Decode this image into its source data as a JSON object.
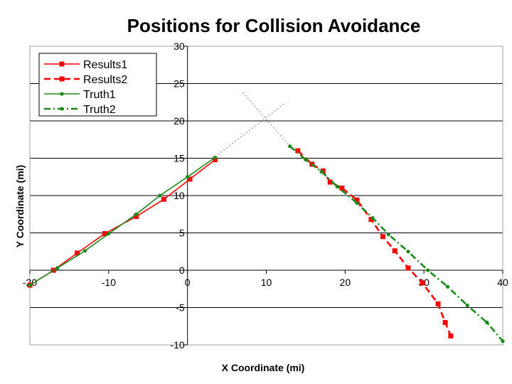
{
  "chart_data": {
    "type": "line",
    "title": "Positions for Collision Avoidance",
    "xlabel": "X Coordinate (mi)",
    "ylabel": "Y Coordinate (mi)",
    "xlim": [
      -20,
      40
    ],
    "ylim": [
      -10,
      30
    ],
    "xticks": [
      -20,
      -10,
      0,
      10,
      20,
      30,
      40
    ],
    "yticks": [
      -10,
      -5,
      0,
      5,
      10,
      15,
      20,
      25,
      30
    ],
    "grid": "horizontal",
    "legend_position": "top-left",
    "series": [
      {
        "name": "Results1",
        "color": "#ff0000",
        "style": "solid",
        "marker": "square",
        "points": [
          [
            -20,
            -2
          ],
          [
            -17,
            0
          ],
          [
            -14,
            2.3
          ],
          [
            -10.5,
            4.9
          ],
          [
            -6.5,
            7.2
          ],
          [
            -3,
            9.5
          ],
          [
            0.3,
            12.2
          ],
          [
            3.5,
            14.8
          ]
        ]
      },
      {
        "name": "Results2",
        "color": "#ff0000",
        "style": "dashed",
        "marker": "square",
        "points": [
          [
            14,
            16
          ],
          [
            15.8,
            14.2
          ],
          [
            17.2,
            13.3
          ],
          [
            18.1,
            11.8
          ],
          [
            19.6,
            11
          ],
          [
            21.5,
            9.4
          ],
          [
            23.3,
            6.8
          ],
          [
            24.8,
            4.5
          ],
          [
            26.3,
            2.6
          ],
          [
            28,
            0.3
          ],
          [
            29.8,
            -1.7
          ],
          [
            31.8,
            -4.5
          ],
          [
            32.7,
            -7
          ],
          [
            33.4,
            -8.8
          ]
        ]
      },
      {
        "name": "Truth1",
        "color": "#1a8a1a",
        "style": "solid",
        "marker": "dot",
        "points": [
          [
            -20,
            -2
          ],
          [
            -16.5,
            0.3
          ],
          [
            -13,
            2.6
          ],
          [
            -10,
            4.9
          ],
          [
            -6.5,
            7.5
          ],
          [
            -3.5,
            10
          ],
          [
            0,
            12.5
          ],
          [
            3.5,
            15.1
          ]
        ]
      },
      {
        "name": "Truth2",
        "color": "#1a8a1a",
        "style": "dash-dot",
        "marker": "dot",
        "points": [
          [
            13,
            16.6
          ],
          [
            15,
            14.8
          ],
          [
            17,
            13.2
          ],
          [
            19,
            11.2
          ],
          [
            21.5,
            9
          ],
          [
            23.5,
            7
          ],
          [
            25.5,
            4.8
          ],
          [
            28,
            2.5
          ],
          [
            30.5,
            0
          ],
          [
            33,
            -2.2
          ],
          [
            35.5,
            -4.7
          ],
          [
            38,
            -7
          ],
          [
            40,
            -9.5
          ]
        ]
      },
      {
        "name": "",
        "color": "#808080",
        "style": "dotted",
        "marker": "none",
        "points": [
          [
            3.5,
            15.2
          ],
          [
            12.5,
            22.5
          ]
        ]
      },
      {
        "name": "",
        "color": "#808080",
        "style": "dotted",
        "marker": "none",
        "points": [
          [
            7,
            23.8
          ],
          [
            13,
            16.6
          ]
        ]
      }
    ]
  }
}
